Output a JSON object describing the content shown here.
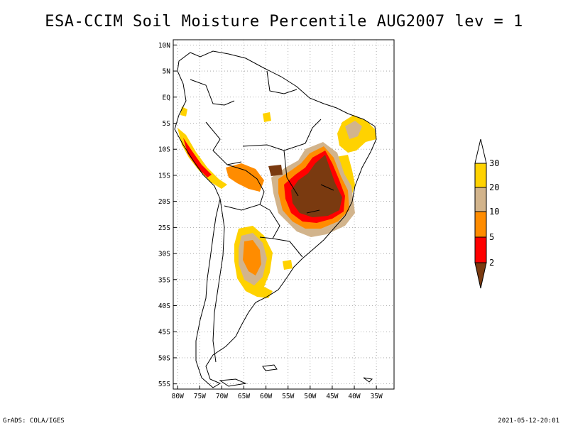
{
  "title": "ESA-CCIM Soil Moisture Percentile AUG2007 lev = 1",
  "footer": {
    "left": "GrADS: COLA/IGES",
    "right": "2021-05-12-20:01"
  },
  "map": {
    "lat_labels": [
      "10N",
      "5N",
      "EQ",
      "5S",
      "10S",
      "15S",
      "20S",
      "25S",
      "30S",
      "35S",
      "40S",
      "45S",
      "50S",
      "55S"
    ],
    "lat_values": [
      10,
      5,
      0,
      -5,
      -10,
      -15,
      -20,
      -25,
      -30,
      -35,
      -40,
      -45,
      -50,
      -55
    ],
    "lon_labels": [
      "80W",
      "75W",
      "70W",
      "65W",
      "60W",
      "55W",
      "50W",
      "45W",
      "40W",
      "35W"
    ],
    "lon_values": [
      -80,
      -75,
      -70,
      -65,
      -60,
      -55,
      -50,
      -45,
      -40,
      -35
    ],
    "lat_range": [
      -56,
      11
    ],
    "lon_range": [
      -81,
      -31
    ],
    "grid": true
  },
  "colorbar": {
    "labels": [
      "30",
      "20",
      "10",
      "5",
      "2"
    ],
    "colors": {
      "above30": "#ffffff",
      "20-30": "#ffd200",
      "10-20": "#d2b48c",
      "5-10": "#ff8c00",
      "2-5": "#ff0000",
      "below2": "#7a3a10"
    }
  }
}
